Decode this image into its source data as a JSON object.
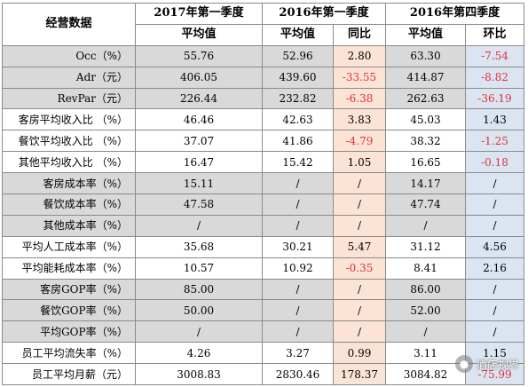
{
  "table": {
    "header_corner": "经营数据",
    "periods": [
      "2017年第一季度",
      "2016年第一季度",
      "2016年第四季度"
    ],
    "subheaders": {
      "avg17": "平均值",
      "avg16": "平均值",
      "yoy": "同比",
      "avg16q4": "平均值",
      "qoq": "环比"
    },
    "rows": [
      {
        "label": "Occ（%）",
        "v17": "55.76",
        "v16": "52.96",
        "yoy": "2.80",
        "v16q4": "63.30",
        "qoq": "-7.54",
        "yoy_neg": false,
        "qoq_neg": true,
        "gray": true
      },
      {
        "label": "Adr（元）",
        "v17": "406.05",
        "v16": "439.60",
        "yoy": "-33.55",
        "v16q4": "414.87",
        "qoq": "-8.82",
        "yoy_neg": true,
        "qoq_neg": true,
        "gray": true
      },
      {
        "label": "RevPar（元）",
        "v17": "226.44",
        "v16": "232.82",
        "yoy": "-6.38",
        "v16q4": "262.63",
        "qoq": "-36.19",
        "yoy_neg": true,
        "qoq_neg": true,
        "gray": true
      },
      {
        "label": "客房平均收入比 （%）",
        "v17": "46.46",
        "v16": "42.63",
        "yoy": "3.83",
        "v16q4": "45.03",
        "qoq": "1.43",
        "yoy_neg": false,
        "qoq_neg": false,
        "gray": false
      },
      {
        "label": "餐饮平均收入比 （%）",
        "v17": "37.07",
        "v16": "41.86",
        "yoy": "-4.79",
        "v16q4": "38.32",
        "qoq": "-1.25",
        "yoy_neg": true,
        "qoq_neg": true,
        "gray": false
      },
      {
        "label": "其他平均收入比 （%）",
        "v17": "16.47",
        "v16": "15.42",
        "yoy": "1.05",
        "v16q4": "16.65",
        "qoq": "-0.18",
        "yoy_neg": false,
        "qoq_neg": true,
        "gray": false
      },
      {
        "label": "客房成本率（%）",
        "v17": "15.11",
        "v16": "/",
        "yoy": "/",
        "v16q4": "14.17",
        "qoq": "/",
        "yoy_neg": false,
        "qoq_neg": false,
        "gray": true
      },
      {
        "label": "餐饮成本率（%）",
        "v17": "47.58",
        "v16": "/",
        "yoy": "/",
        "v16q4": "47.74",
        "qoq": "/",
        "yoy_neg": false,
        "qoq_neg": false,
        "gray": true
      },
      {
        "label": "其他成本率（%）",
        "v17": "/",
        "v16": "/",
        "yoy": "/",
        "v16q4": "/",
        "qoq": "/",
        "yoy_neg": false,
        "qoq_neg": false,
        "gray": true
      },
      {
        "label": "平均人工成本率（%）",
        "v17": "35.68",
        "v16": "30.21",
        "yoy": "5.47",
        "v16q4": "31.12",
        "qoq": "4.56",
        "yoy_neg": false,
        "qoq_neg": false,
        "gray": false
      },
      {
        "label": "平均能耗成本率（%）",
        "v17": "10.57",
        "v16": "10.92",
        "yoy": "-0.35",
        "v16q4": "8.41",
        "qoq": "2.16",
        "yoy_neg": true,
        "qoq_neg": false,
        "gray": false
      },
      {
        "label": "客房GOP率（%）",
        "v17": "85.00",
        "v16": "/",
        "yoy": "/",
        "v16q4": "86.00",
        "qoq": "/",
        "yoy_neg": false,
        "qoq_neg": false,
        "gray": true
      },
      {
        "label": "餐饮GOP率（%）",
        "v17": "50.00",
        "v16": "/",
        "yoy": "/",
        "v16q4": "52.00",
        "qoq": "/",
        "yoy_neg": false,
        "qoq_neg": false,
        "gray": true
      },
      {
        "label": "平均GOP率（%）",
        "v17": "/",
        "v16": "/",
        "yoy": "/",
        "v16q4": "/",
        "qoq": "/",
        "yoy_neg": false,
        "qoq_neg": false,
        "gray": true
      },
      {
        "label": "员工平均流失率（%）",
        "v17": "4.26",
        "v16": "3.27",
        "yoy": "0.99",
        "v16q4": "3.11",
        "qoq": "1.15",
        "yoy_neg": false,
        "qoq_neg": false,
        "gray": false
      },
      {
        "label": "员工平均月薪（元）",
        "v17": "3008.83",
        "v16": "2830.46",
        "yoy": "178.37",
        "v16q4": "3084.82",
        "qoq": "-75.99",
        "yoy_neg": false,
        "qoq_neg": true,
        "gray": false
      }
    ]
  },
  "watermark": {
    "text": "酒店视界",
    "icon": "wechat-icon"
  }
}
